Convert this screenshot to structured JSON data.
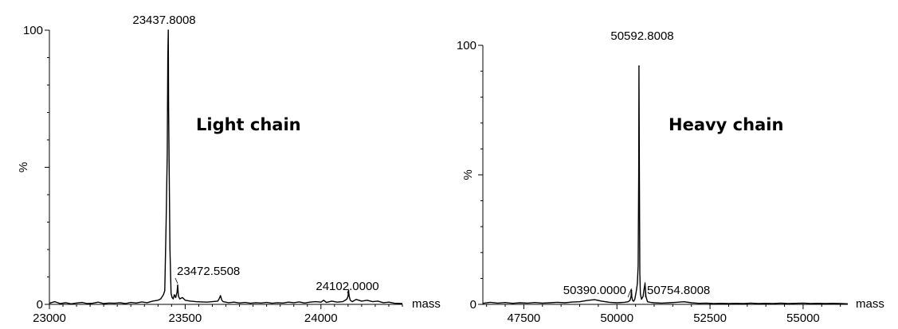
{
  "colors": {
    "trace": "#000000",
    "axis": "#000000",
    "background": "#ffffff"
  },
  "chart_data": [
    {
      "type": "line",
      "title": "Light chain",
      "xlabel": "mass",
      "ylabel": "%",
      "xlim": [
        23000,
        24300
      ],
      "ylim": [
        0,
        100
      ],
      "x_ticks": [
        23000,
        23500,
        24000
      ],
      "y_ticks": [
        0,
        100
      ],
      "grid": false,
      "x": [
        23000,
        23020,
        23040,
        23060,
        23080,
        23100,
        23120,
        23140,
        23160,
        23180,
        23200,
        23220,
        23240,
        23260,
        23280,
        23300,
        23320,
        23340,
        23360,
        23380,
        23400,
        23410,
        23420,
        23425,
        23430,
        23434,
        23436,
        23437.8,
        23439,
        23441,
        23444,
        23448,
        23452,
        23456,
        23460,
        23465,
        23470,
        23472.55,
        23475,
        23480,
        23490,
        23500,
        23520,
        23540,
        23560,
        23580,
        23600,
        23620,
        23625,
        23630,
        23635,
        23640,
        23660,
        23680,
        23700,
        23720,
        23740,
        23760,
        23780,
        23800,
        23820,
        23840,
        23860,
        23880,
        23900,
        23920,
        23940,
        23960,
        23980,
        24000,
        24010,
        24020,
        24040,
        24060,
        24080,
        24090,
        24096,
        24100,
        24102,
        24104,
        24108,
        24115,
        24130,
        24150,
        24170,
        24190,
        24210,
        24230,
        24250,
        24270,
        24300
      ],
      "values": [
        0.4,
        1.0,
        0.3,
        0.6,
        0.2,
        0.5,
        0.7,
        0.3,
        0.4,
        0.8,
        0.3,
        0.5,
        0.4,
        0.6,
        0.3,
        0.7,
        0.5,
        0.9,
        0.6,
        1.2,
        1.5,
        2.0,
        3.5,
        5.0,
        30,
        55,
        90,
        100,
        72,
        50,
        20,
        4,
        2.5,
        2.0,
        3.5,
        2.5,
        4.5,
        7.0,
        3.0,
        2.0,
        2.5,
        1.5,
        1.2,
        1.0,
        0.9,
        0.8,
        1.0,
        1.2,
        2.0,
        3.2,
        1.5,
        1.0,
        0.6,
        0.8,
        0.5,
        0.7,
        0.4,
        0.6,
        0.5,
        0.7,
        0.4,
        0.6,
        0.5,
        0.8,
        0.6,
        0.9,
        0.5,
        0.8,
        1.0,
        0.8,
        1.5,
        0.7,
        1.2,
        0.8,
        1.0,
        1.5,
        2.0,
        3.0,
        5.0,
        3.0,
        1.5,
        1.0,
        1.8,
        1.2,
        1.5,
        1.0,
        1.2,
        0.6,
        0.8,
        0.4,
        0.3
      ],
      "annotations": [
        {
          "text": "23437.8008",
          "x": 23437.8,
          "y": 100
        },
        {
          "text": "23472.5508",
          "x": 23472.55,
          "y": 7.0
        },
        {
          "text": "24102.0000",
          "x": 24102,
          "y": 5.0
        }
      ]
    },
    {
      "type": "line",
      "title": "Heavy chain",
      "xlabel": "mass",
      "ylabel": "%",
      "xlim": [
        46400,
        56200
      ],
      "ylim": [
        0,
        100
      ],
      "x_ticks": [
        47500,
        50000,
        52500,
        55000
      ],
      "y_ticks": [
        0,
        100
      ],
      "grid": false,
      "x": [
        46400,
        46600,
        46800,
        47000,
        47200,
        47400,
        47600,
        47800,
        48000,
        48200,
        48400,
        48600,
        48800,
        49000,
        49200,
        49400,
        49600,
        49800,
        50000,
        50200,
        50300,
        50350,
        50380,
        50390,
        50400,
        50420,
        50450,
        50480,
        50520,
        50550,
        50570,
        50585,
        50592.8,
        50600,
        50615,
        50630,
        50660,
        50700,
        50730,
        50754.8,
        50780,
        50820,
        50900,
        51000,
        51200,
        51400,
        51600,
        51800,
        52000,
        52200,
        52400,
        52600,
        52800,
        53000,
        53200,
        53400,
        53600,
        53800,
        54000,
        54200,
        54400,
        54600,
        54800,
        55000,
        55200,
        55400,
        55600,
        55800,
        56000,
        56200
      ],
      "values": [
        0.4,
        0.8,
        0.5,
        0.7,
        0.4,
        0.6,
        0.5,
        0.7,
        0.5,
        0.6,
        0.8,
        0.6,
        0.9,
        1.0,
        1.5,
        1.8,
        1.2,
        0.8,
        0.6,
        0.8,
        1.0,
        1.5,
        3.0,
        5.5,
        3.0,
        1.5,
        1.2,
        2.0,
        5.0,
        8.0,
        15,
        50,
        92,
        60,
        12,
        4.0,
        2.0,
        3.0,
        6.0,
        8.0,
        3.0,
        1.0,
        0.8,
        0.6,
        0.5,
        0.6,
        0.8,
        1.0,
        0.6,
        0.4,
        0.5,
        0.3,
        0.4,
        0.3,
        0.4,
        0.3,
        0.5,
        0.3,
        0.4,
        0.3,
        0.5,
        0.3,
        0.4,
        0.5,
        0.3,
        0.4,
        0.3,
        0.4,
        0.3,
        0.2
      ],
      "annotations": [
        {
          "text": "50592.8008",
          "x": 50592.8,
          "y": 92
        },
        {
          "text": "50390.0000",
          "x": 50390,
          "y": 5.5
        },
        {
          "text": "50754.8008",
          "x": 50754.8,
          "y": 8.0
        }
      ]
    }
  ]
}
